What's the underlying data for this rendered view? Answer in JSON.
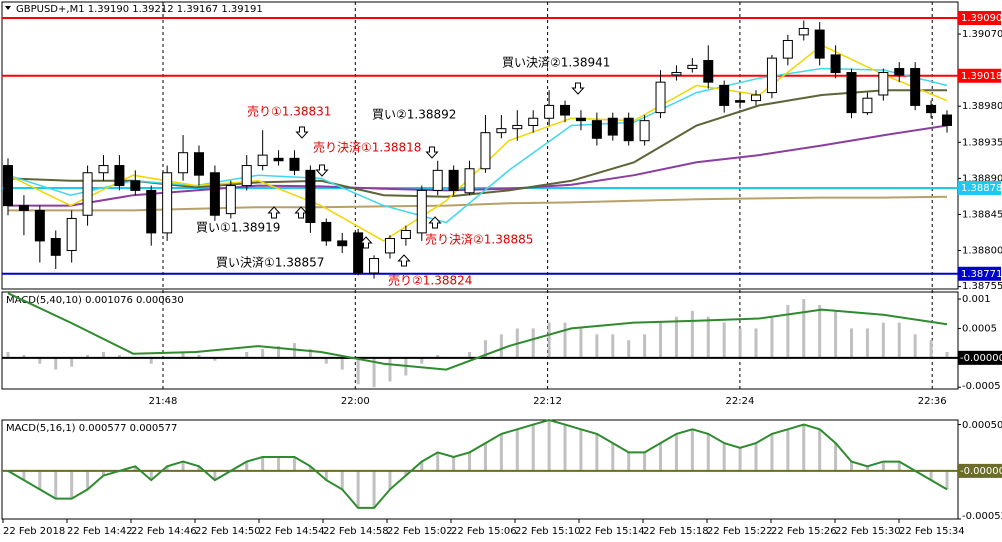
{
  "chart_data": [
    {
      "type": "candlestick",
      "title": "GBPUSD+,M1 1.39190 1.39212 1.39167 1.39191",
      "open": [
        1.38906,
        1.38856,
        1.3885,
        1.38815,
        1.388,
        1.38844,
        1.38897,
        1.38906,
        1.38887,
        1.38875,
        1.38822,
        1.38897,
        1.38922,
        1.38897,
        1.38846,
        1.38881,
        1.38906,
        1.38915,
        1.38915,
        1.389,
        1.38835,
        1.38812,
        1.38822,
        1.38772,
        1.38797,
        1.38815,
        1.38822,
        1.38875,
        1.389,
        1.38872,
        1.38902,
        1.38947,
        1.38952,
        1.38956,
        1.38965,
        1.38981,
        1.38965,
        1.38962,
        1.38965,
        1.38965,
        1.38937,
        1.38972,
        1.39019,
        1.39027,
        1.39037,
        1.39006,
        1.38987,
        1.38987,
        1.38997,
        1.3904,
        1.39069,
        1.39075,
        1.39044,
        1.39022,
        1.38972,
        1.38994,
        1.39027,
        1.39027,
        1.38981,
        1.38969
      ],
      "high": [
        1.38915,
        1.38869,
        1.38856,
        1.38825,
        1.3885,
        1.38906,
        1.38919,
        1.38919,
        1.389,
        1.38881,
        1.38906,
        1.38944,
        1.38931,
        1.38906,
        1.38887,
        1.38919,
        1.3895,
        1.38925,
        1.38925,
        1.38906,
        1.3884,
        1.38822,
        1.38827,
        1.38794,
        1.38819,
        1.38831,
        1.38881,
        1.38912,
        1.38906,
        1.38912,
        1.38969,
        1.38969,
        1.38975,
        1.38975,
        1.39,
        1.38987,
        1.38975,
        1.38972,
        1.38972,
        1.38972,
        1.38969,
        1.39025,
        1.39031,
        1.3904,
        1.39056,
        1.39012,
        1.38997,
        1.39,
        1.39044,
        1.39069,
        1.39087,
        1.39085,
        1.39056,
        1.39027,
        1.38997,
        1.39027,
        1.39035,
        1.39035,
        1.38987,
        1.38975
      ],
      "low": [
        1.38844,
        1.38819,
        1.38785,
        1.38777,
        1.38785,
        1.38831,
        1.38887,
        1.38875,
        1.38869,
        1.38806,
        1.38812,
        1.38887,
        1.38881,
        1.38837,
        1.3884,
        1.38875,
        1.389,
        1.38906,
        1.38894,
        1.38822,
        1.38806,
        1.38797,
        1.38769,
        1.38765,
        1.3879,
        1.38806,
        1.38812,
        1.38869,
        1.38869,
        1.38869,
        1.38897,
        1.3894,
        1.38937,
        1.38947,
        1.38956,
        1.3896,
        1.3895,
        1.38931,
        1.38937,
        1.38931,
        1.38931,
        1.38965,
        1.39012,
        1.39022,
        1.39002,
        1.38972,
        1.38977,
        1.38981,
        1.3899,
        1.39031,
        1.39062,
        1.39031,
        1.39015,
        1.38965,
        1.38969,
        1.38987,
        1.3901,
        1.38975,
        1.38965,
        1.38947
      ],
      "close": [
        1.38856,
        1.3885,
        1.38812,
        1.38794,
        1.3884,
        1.38897,
        1.38906,
        1.38881,
        1.38875,
        1.38822,
        1.38897,
        1.38922,
        1.38894,
        1.38844,
        1.38881,
        1.38906,
        1.38919,
        1.38912,
        1.389,
        1.38835,
        1.38812,
        1.38806,
        1.38772,
        1.3879,
        1.38815,
        1.38825,
        1.38875,
        1.389,
        1.38875,
        1.38902,
        1.38947,
        1.38952,
        1.38956,
        1.38965,
        1.38981,
        1.38969,
        1.38962,
        1.3894,
        1.38944,
        1.38937,
        1.38962,
        1.3901,
        1.39022,
        1.39031,
        1.3901,
        1.38981,
        1.38985,
        1.38994,
        1.3904,
        1.39062,
        1.39077,
        1.3904,
        1.39022,
        1.38972,
        1.3899,
        1.39022,
        1.39019,
        1.38981,
        1.38972,
        1.38956
      ],
      "lines": [
        {
          "color": "#b7a06a",
          "width": 2,
          "values": [
            1.3885,
            1.3885,
            1.3885,
            1.38852,
            1.38854,
            1.38854,
            1.38855,
            1.38856,
            1.38859,
            1.3886,
            1.38862,
            1.38864,
            1.38865,
            1.38866,
            1.38866,
            1.38867
          ]
        },
        {
          "color": "#8b3e9e",
          "width": 2,
          "values": [
            1.38856,
            1.38856,
            1.38869,
            1.38875,
            1.38881,
            1.3888,
            1.38877,
            1.38875,
            1.38877,
            1.38882,
            1.38894,
            1.3891,
            1.38919,
            1.38931,
            1.38944,
            1.38956
          ]
        },
        {
          "color": "#5f6438",
          "width": 2,
          "values": [
            1.3889,
            1.38887,
            1.38887,
            1.38879,
            1.38885,
            1.38887,
            1.38869,
            1.38867,
            1.38875,
            1.38887,
            1.3891,
            1.38956,
            1.38981,
            1.38994,
            1.39,
            1.39
          ]
        },
        {
          "color": "#3fd8ec",
          "width": 1.5,
          "values": [
            1.38894,
            1.38869,
            1.38887,
            1.38881,
            1.38894,
            1.3889,
            1.38856,
            1.38835,
            1.389,
            1.38956,
            1.3896,
            1.38997,
            1.39015,
            1.39027,
            1.39025,
            1.39006
          ]
        },
        {
          "color": "#f2d600",
          "width": 1.5,
          "values": [
            1.38894,
            1.38856,
            1.38894,
            1.38881,
            1.38887,
            1.38856,
            1.38812,
            1.38862,
            1.38937,
            1.38965,
            1.38962,
            1.39006,
            1.38994,
            1.39056,
            1.39019,
            1.38987
          ]
        }
      ],
      "hlines": [
        {
          "value": 1.3909,
          "label": "1.39090",
          "color": "#ff0000"
        },
        {
          "value": 1.39018,
          "label": "1.39018",
          "color": "#ff0000"
        },
        {
          "value": 1.38878,
          "label": "1.38878",
          "color": "#1ec8f0"
        },
        {
          "value": 1.38771,
          "label": "1.38771",
          "color": "#0000cc"
        }
      ],
      "ylim": [
        1.38752,
        1.3911
      ],
      "yticks": [
        {
          "value": 1.3907,
          "label": "1.39070"
        },
        {
          "value": 1.3898,
          "label": "1.38980"
        },
        {
          "value": 1.38935,
          "label": "1.38935"
        },
        {
          "value": 1.3889,
          "label": "1.38890"
        },
        {
          "value": 1.38845,
          "label": "1.38845"
        },
        {
          "value": 1.388,
          "label": "1.38800"
        },
        {
          "value": 1.38755,
          "label": "1.38755"
        }
      ],
      "annotations": [
        {
          "text": "売り①1.38831",
          "color": "#e00000"
        },
        {
          "text": "買い②1.38892",
          "color": "#000000"
        },
        {
          "text": "売り決済①1.38818",
          "color": "#e00000"
        },
        {
          "text": "買い決済②1.38941",
          "color": "#000000"
        },
        {
          "text": "買い①1.38919",
          "color": "#000000"
        },
        {
          "text": "売り決済②1.38885",
          "color": "#e00000"
        },
        {
          "text": "買い決済①1.38857",
          "color": "#000000"
        },
        {
          "text": "売り②1.38824",
          "color": "#e00000"
        }
      ]
    },
    {
      "type": "macd",
      "title": "MACD(5,40,10) 0.001076 0.000630",
      "histogram": [
        0.0001,
        5e-05,
        -0.0001,
        -0.0002,
        -0.00015,
        5e-05,
        0.0001,
        5e-05,
        0,
        -0.0001,
        0,
        0.0001,
        5e-05,
        -5e-05,
        0,
        0.0001,
        0.00015,
        0.0002,
        0.00025,
        0.00015,
        -0.0001,
        -0.0002,
        -0.00045,
        -0.0005,
        -0.0004,
        -0.0003,
        -0.0001,
        5e-05,
        0,
        0.0001,
        0.0003,
        0.0004,
        0.0005,
        0.0005,
        0.0006,
        0.0006,
        0.0005,
        0.0004,
        0.0004,
        0.0003,
        0.0004,
        0.0006,
        0.0007,
        0.0008,
        0.0007,
        0.0006,
        0.0005,
        0.0005,
        0.0007,
        0.0009,
        0.001,
        0.0009,
        0.0008,
        0.0005,
        0.0005,
        0.0006,
        0.0006,
        0.0004,
        0.0003,
        0.0001
      ],
      "histogram_color": "#c0c0c0",
      "signal": [
        0.0011,
        0.0006,
        7e-05,
        0.0001,
        0.0002,
        0.0001,
        -0.0001,
        -0.0002,
        0.0002,
        0.0005,
        0.0006,
        0.00063,
        0.00067,
        0.00082,
        0.00073,
        0.00057
      ],
      "line_color": "#2e8b2e",
      "ylim": [
        -0.00053,
        0.00112
      ],
      "yticks": [
        0.001,
        0.0005,
        -0.0005
      ],
      "level": {
        "value": 0,
        "label": "-0.00000"
      },
      "level_color": "#000000",
      "x_labels": [
        "21:48",
        "22:00",
        "22:12",
        "22:24",
        "22:36"
      ]
    },
    {
      "type": "macd",
      "title": "MACD(5,16,1) 0.000577 0.000577",
      "histogram": [
        0,
        -0.0001,
        -0.0002,
        -0.0003,
        -0.0003,
        -0.0002,
        -5e-05,
        0,
        5e-05,
        -0.0001,
        5e-05,
        0.0001,
        5e-05,
        -0.0001,
        0,
        0.0001,
        0.00015,
        0.00015,
        0.00015,
        5e-05,
        -0.0001,
        -0.0002,
        -0.0004,
        -0.0004,
        -0.0002,
        -5e-05,
        0.0001,
        0.0002,
        0.00015,
        0.0002,
        0.0003,
        0.0004,
        0.00045,
        0.0005,
        0.00055,
        0.0005,
        0.00045,
        0.0004,
        0.0003,
        0.0002,
        0.0002,
        0.0003,
        0.0004,
        0.00045,
        0.0004,
        0.0003,
        0.00025,
        0.0003,
        0.0004,
        0.00045,
        0.0005,
        0.00045,
        0.0003,
        0.0001,
        5e-05,
        0.0001,
        0.0001,
        0,
        -0.0001,
        -0.0002
      ],
      "histogram_color": "#c0c0c0",
      "line_color": "#2e8b2e",
      "ylim": [
        -0.00052,
        0.00055
      ],
      "yticks": [
        0.000501,
        {
          "value": -0.00052,
          "label": "-0.000520"
        }
      ],
      "level": {
        "value": 0,
        "label": "-0.00000"
      },
      "level_color": "#6b6b2a"
    }
  ],
  "time_axis": {
    "labels": [
      "22 Feb 2018",
      "22 Feb 14:42",
      "22 Feb 14:46",
      "22 Feb 14:50",
      "22 Feb 14:54",
      "22 Feb 14:58",
      "22 Feb 15:02",
      "22 Feb 15:06",
      "22 Feb 15:10",
      "22 Feb 15:14",
      "22 Feb 15:18",
      "22 Feb 15:22",
      "22 Feb 15:26",
      "22 Feb 15:30",
      "22 Feb 15:34"
    ]
  }
}
